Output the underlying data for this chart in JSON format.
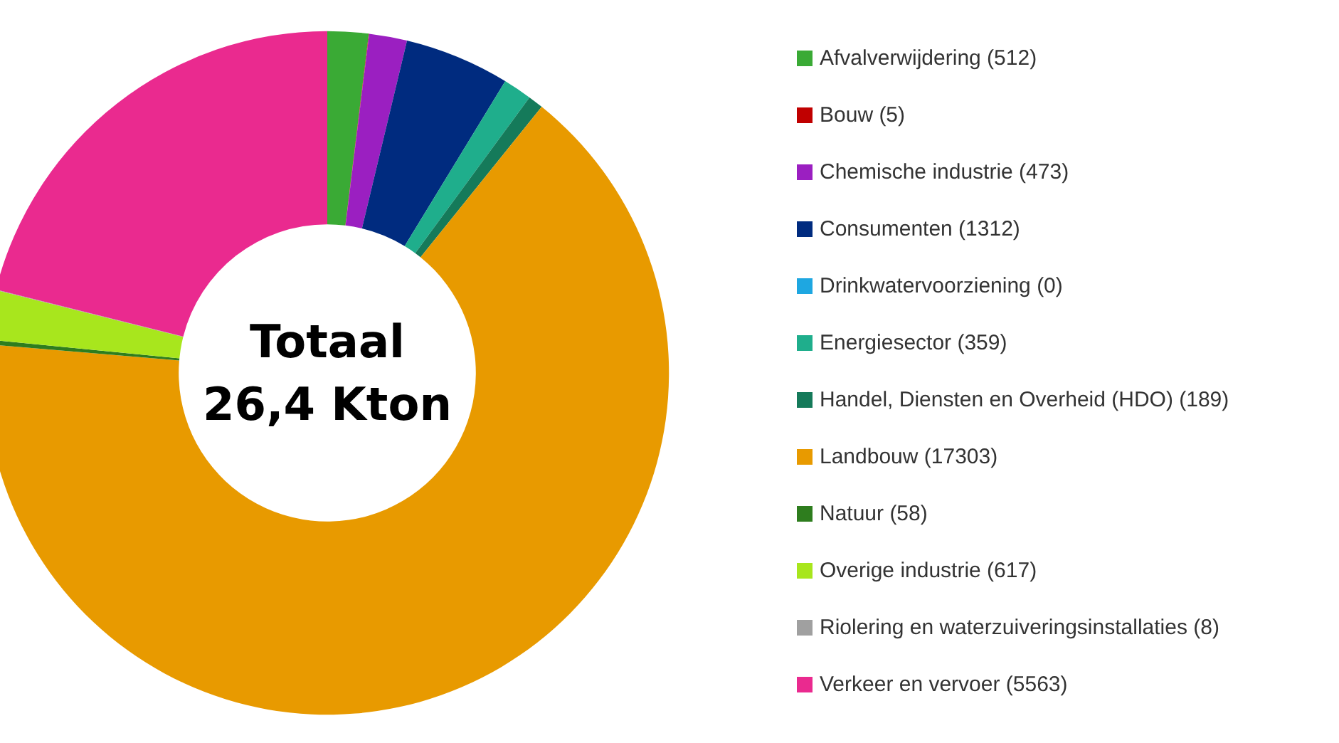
{
  "chart_data": {
    "type": "donut",
    "categories": [
      "Afvalverwijdering (512)",
      "Bouw (5)",
      "Chemische industrie (473)",
      "Consumenten (1312)",
      "Drinkwatervoorziening (0)",
      "Energiesector (359)",
      "Handel, Diensten en Overheid (HDO) (189)",
      "Landbouw (17303)",
      "Natuur (58)",
      "Overige industrie (617)",
      "Riolering en waterzuiveringsinstallaties (8)",
      "Verkeer en vervoer (5563)"
    ],
    "values": [
      512,
      5,
      473,
      1312,
      0,
      359,
      189,
      17303,
      58,
      617,
      8,
      5563
    ],
    "colors": [
      "#3aaa35",
      "#c00000",
      "#9b1fc1",
      "#002b7f",
      "#1ea7e1",
      "#1fae8c",
      "#157a5a",
      "#e89a00",
      "#2e7d1e",
      "#a8e61d",
      "#a0a0a0",
      "#ea2a8f"
    ],
    "annotations": [
      "Totaal",
      "26,4 Kton"
    ],
    "legend": "right"
  }
}
